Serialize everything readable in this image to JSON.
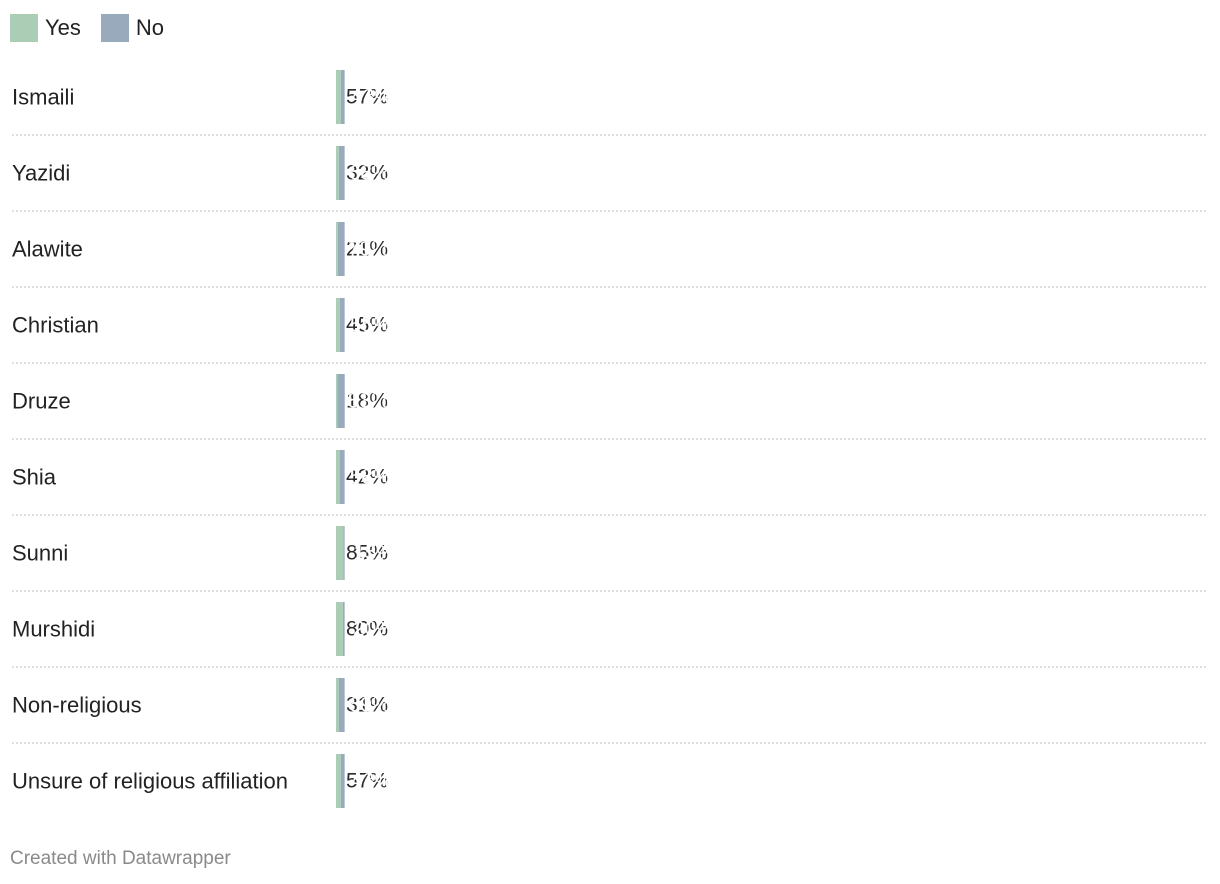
{
  "chart_data": {
    "type": "stacked-bar",
    "orientation": "horizontal",
    "categories": [
      "Ismaili",
      "Yazidi",
      "Alawite",
      "Christian",
      "Druze",
      "Shia",
      "Sunni",
      "Murshidi",
      "Non-religious",
      "Unsure of religious affiliation"
    ],
    "series": [
      {
        "name": "Yes",
        "color": "#abcdb6",
        "values": [
          57,
          32,
          21,
          45,
          18,
          42,
          85,
          80,
          31,
          57
        ]
      },
      {
        "name": "No",
        "color": "#98aabb",
        "values": [
          43,
          68,
          79,
          55,
          83,
          58,
          15,
          20,
          69,
          43
        ]
      }
    ],
    "value_suffix": "%",
    "legend": "top-left",
    "xlim": [
      0,
      100
    ]
  },
  "legend": {
    "yes_label": "Yes",
    "no_label": "No",
    "yes_color": "#abcdb6",
    "no_color": "#98aabb"
  },
  "footer": {
    "credit": "Created with Datawrapper"
  }
}
